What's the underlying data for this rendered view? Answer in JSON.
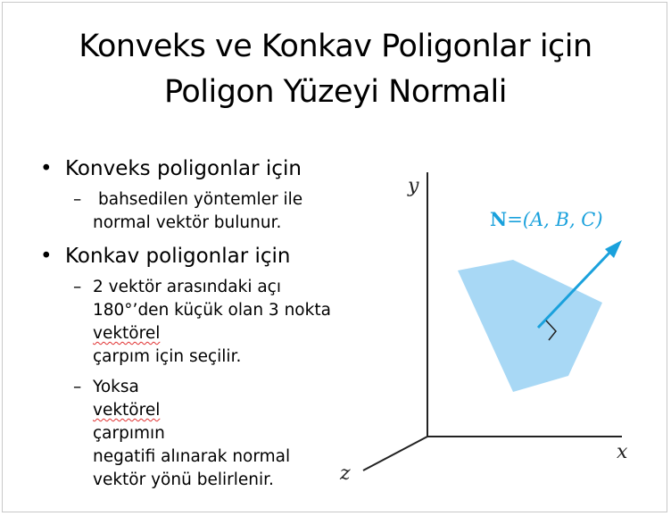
{
  "slide": {
    "title_line1": "Konveks ve Konkav Poligonlar için",
    "title_line2": "Poligon Yüzeyi Normali",
    "bullets": [
      {
        "label": "Konveks poligonlar için",
        "subs": [
          {
            "lines": [
              "bahsedilen yöntemler ile",
              "normal vektör bulunur."
            ]
          }
        ]
      },
      {
        "label": "Konkav poligonlar için",
        "subs": [
          {
            "lines": [
              "2 vektör arasındaki açı",
              "180°’den küçük olan 3 nokta"
            ],
            "last_line_marked": "vektörel",
            "last_line_rest": " çarpım için seçilir."
          },
          {
            "first_line_plain": "Yoksa ",
            "first_line_marked": "vektörel",
            "first_line_rest": " çarpımın",
            "lines": [
              "negatifi alınarak normal",
              "vektör yönü belirlenir."
            ]
          }
        ]
      }
    ]
  },
  "figure": {
    "normal_label_bold": "N",
    "normal_label_rest": "=(A, B, C)",
    "axis_x": "x",
    "axis_y": "y",
    "axis_z": "z",
    "colors": {
      "polygon_fill": "#a8d8f5",
      "arrow": "#1aa1dc",
      "axis": "#222222"
    }
  },
  "ui": {
    "spellcheck_marker_color": "#e03030"
  }
}
